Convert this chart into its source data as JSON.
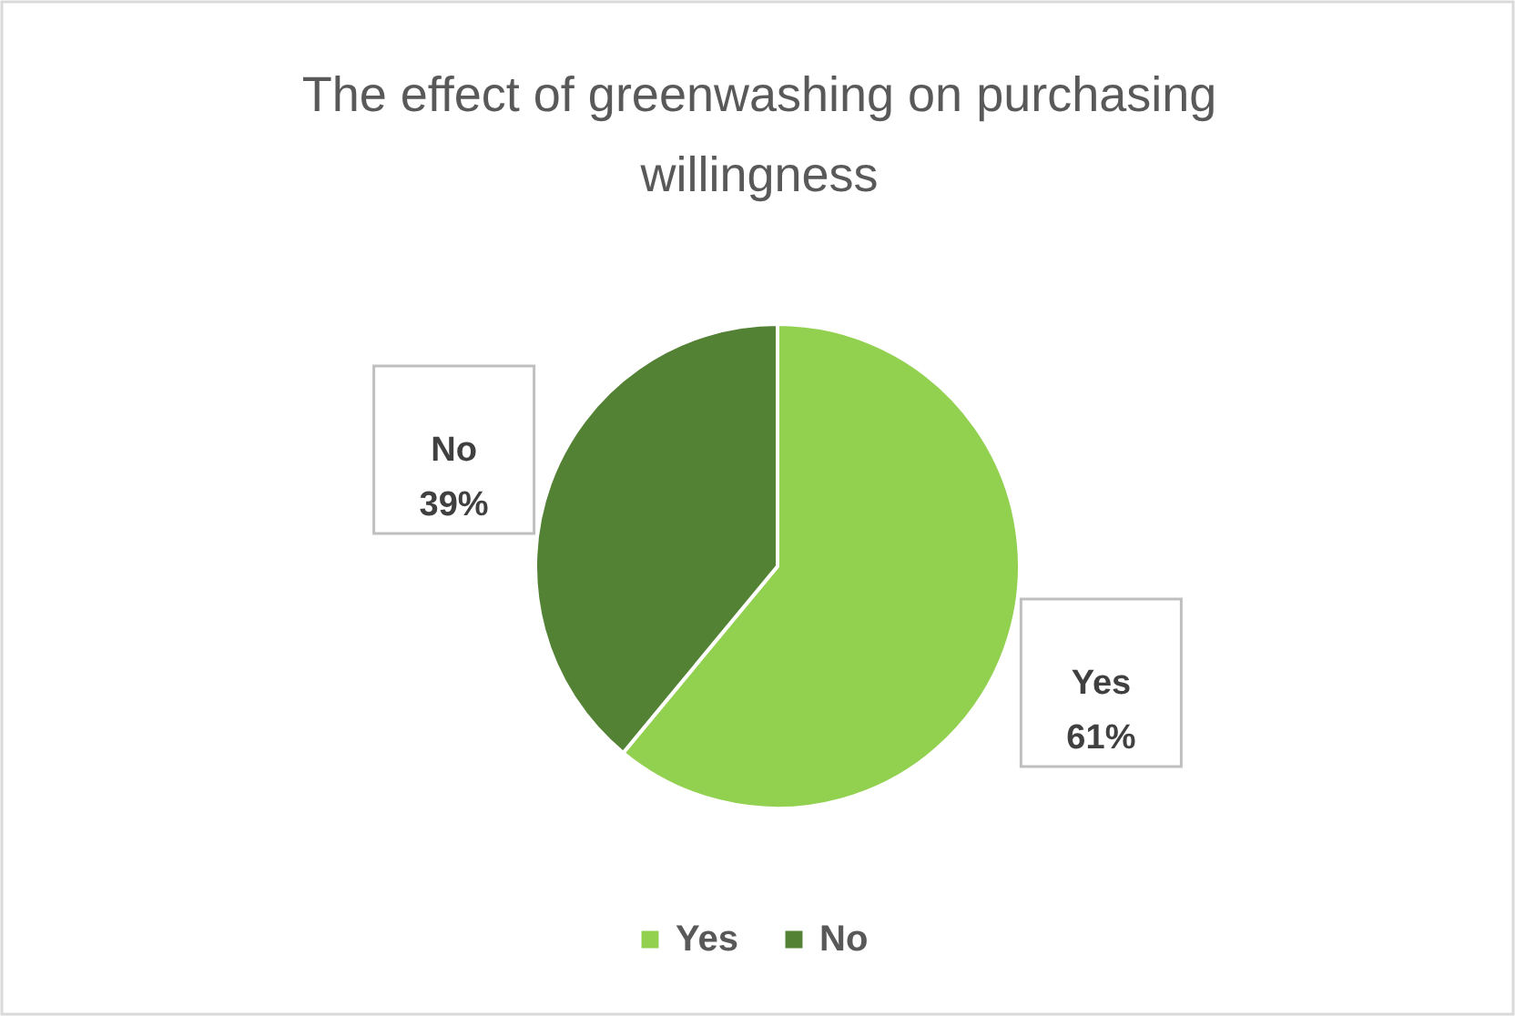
{
  "chart_data": {
    "type": "pie",
    "title": "The effect of greenwashing on purchasing willingness",
    "categories": [
      "Yes",
      "No"
    ],
    "values": [
      61,
      39
    ],
    "colors": [
      "#92d050",
      "#548235"
    ],
    "value_labels": [
      "61%",
      "39%"
    ],
    "legend": "bottom"
  }
}
